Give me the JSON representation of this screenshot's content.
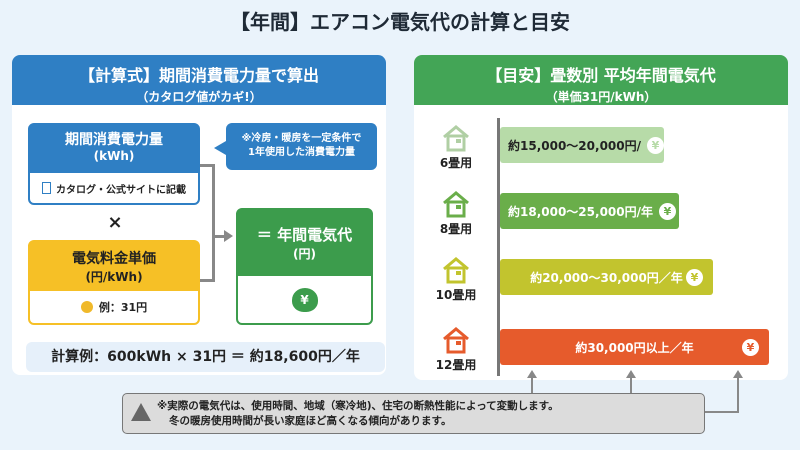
{
  "title": "【年間】エアコン電気代の計算と目安",
  "left": {
    "header": "【計算式】期間消費電力量で算出",
    "subheader": "（カタログ値がカギ!）",
    "kwh_box": {
      "title": "期間消費電力量",
      "unit": "(kWh)",
      "note": "カタログ・公式サイトに記載"
    },
    "callout": [
      "※冷房・暖房を一定条件で",
      "1年使用した消費電力量"
    ],
    "times": "×",
    "price_box": {
      "title": "電気料金単価",
      "unit": "(円/kWh)",
      "note": "例：31円"
    },
    "result_box": {
      "title": "＝ 年間電気代",
      "unit": "(円)"
    },
    "example": "計算例：600kWh × 31円 ＝ 約18,600円／年"
  },
  "right": {
    "header": "【目安】畳数別 平均年間電気代",
    "subheader": "（単価31円/kWh）",
    "items": [
      {
        "label": "6畳用",
        "text": "約15,000〜20,000円/",
        "min": 15000,
        "max": 20000,
        "color": "#b7dba8",
        "icon": "house-icon"
      },
      {
        "label": "8畳用",
        "text": "約18,000〜25,000円/年",
        "min": 18000,
        "max": 25000,
        "color": "#6aae4a",
        "icon": "house-icon"
      },
      {
        "label": "10畳用",
        "text": "約20,000〜30,000円／年",
        "min": 20000,
        "max": 30000,
        "color": "#c2c42e",
        "icon": "house-icon"
      },
      {
        "label": "12畳用",
        "text": "約30,000円以上／年",
        "min": 30000,
        "max": null,
        "color": "#e65b2c",
        "icon": "house-icon"
      }
    ]
  },
  "warning": [
    "※実際の電気代は、使用時間、地域（寒冷地)、住宅の断熱性能によって変動します。",
    "冬の暖房使用時間が長い家庭ほど高くなる傾向があります。"
  ],
  "colors": {
    "blue": "#2f7fc4",
    "green": "#43a556",
    "yellow": "#f6c026"
  }
}
